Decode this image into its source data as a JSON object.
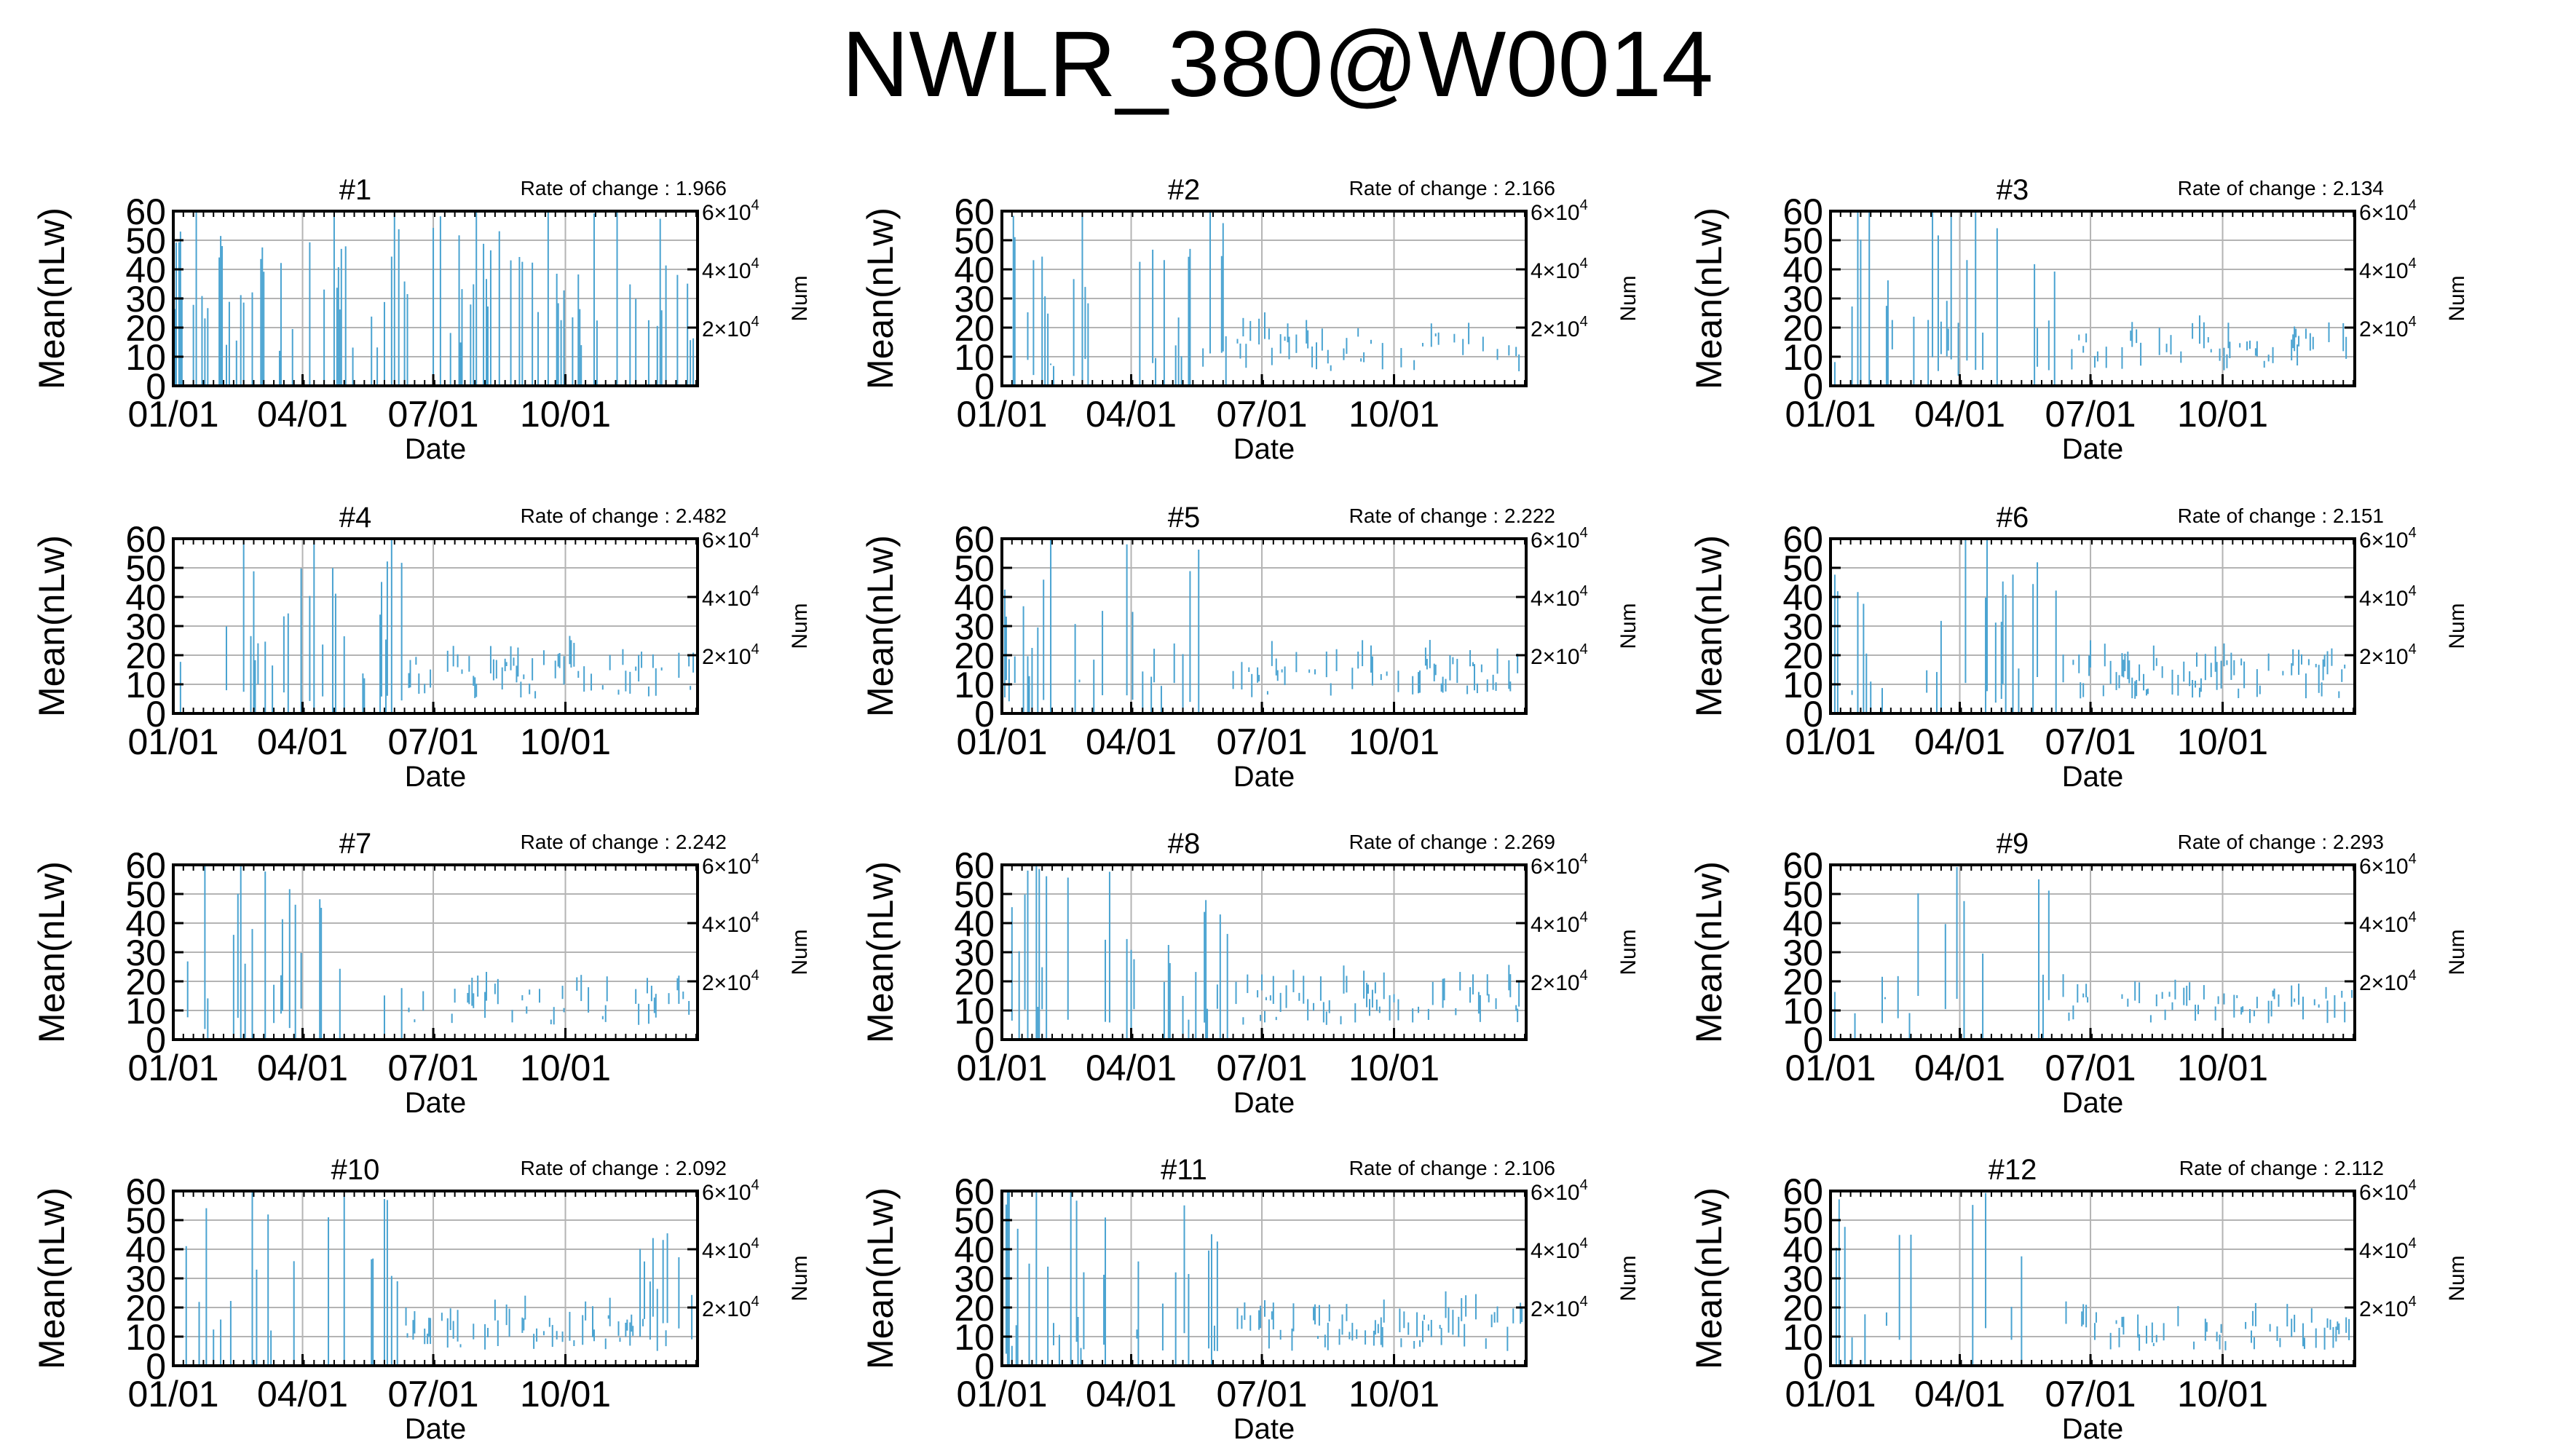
{
  "page": {
    "title": "NWLR_380@W0014"
  },
  "chart_common": {
    "type": "bar",
    "xlabel": "Date",
    "ylabel": "Mean(nLw)",
    "y2label": "Num",
    "xticks": [
      "01/01",
      "04/01",
      "07/01",
      "10/01"
    ],
    "xtick_days": [
      0,
      90,
      181,
      273
    ],
    "xlim": [
      0,
      365
    ],
    "ylim": [
      0,
      60
    ],
    "yticks": [
      0,
      10,
      20,
      30,
      40,
      50,
      60
    ],
    "y2lim": [
      0,
      60000
    ],
    "y2ticks": [
      {
        "value": 20000,
        "coef": "2",
        "exp": "4"
      },
      {
        "value": 40000,
        "coef": "4",
        "exp": "4"
      },
      {
        "value": 60000,
        "coef": "6",
        "exp": "4"
      }
    ],
    "y2tick_mult": "×10",
    "rate_prefix": "Rate of change : ",
    "grid": true,
    "line_color": "#4aa3d1"
  },
  "chart_data": [
    {
      "type": "bar",
      "title": "#1",
      "rate_of_change": "1.966",
      "seed": 11,
      "profile": "high"
    },
    {
      "type": "bar",
      "title": "#2",
      "rate_of_change": "2.166",
      "seed": 23,
      "profile": "mixed"
    },
    {
      "type": "bar",
      "title": "#3",
      "rate_of_change": "2.134",
      "seed": 37,
      "profile": "mixed"
    },
    {
      "type": "bar",
      "title": "#4",
      "rate_of_change": "2.482",
      "seed": 41,
      "profile": "mixed"
    },
    {
      "type": "bar",
      "title": "#5",
      "rate_of_change": "2.222",
      "seed": 53,
      "profile": "mixed"
    },
    {
      "type": "bar",
      "title": "#6",
      "rate_of_change": "2.151",
      "seed": 67,
      "profile": "mixed"
    },
    {
      "type": "bar",
      "title": "#7",
      "rate_of_change": "2.242",
      "seed": 71,
      "profile": "mixed"
    },
    {
      "type": "bar",
      "title": "#8",
      "rate_of_change": "2.269",
      "seed": 83,
      "profile": "mixed"
    },
    {
      "type": "bar",
      "title": "#9",
      "rate_of_change": "2.293",
      "seed": 97,
      "profile": "sparse"
    },
    {
      "type": "bar",
      "title": "#10",
      "rate_of_change": "2.092",
      "seed": 101,
      "profile": "late"
    },
    {
      "type": "bar",
      "title": "#11",
      "rate_of_change": "2.106",
      "seed": 113,
      "profile": "mixed"
    },
    {
      "type": "bar",
      "title": "#12",
      "rate_of_change": "2.112",
      "seed": 127,
      "profile": "sparse"
    }
  ]
}
